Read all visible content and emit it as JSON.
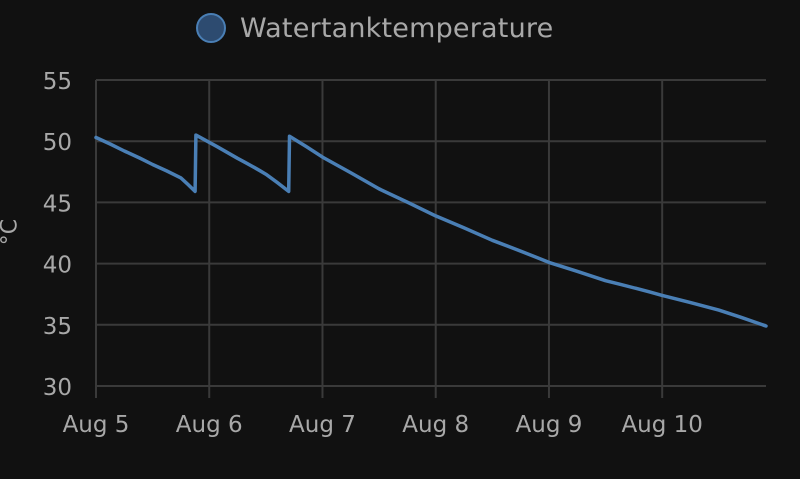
{
  "chart_data": {
    "type": "line",
    "title": "",
    "xlabel": "",
    "ylabel": "°C",
    "ylim": [
      30,
      55
    ],
    "yticks": [
      30,
      35,
      40,
      45,
      50,
      55
    ],
    "xlim": [
      "Aug 5",
      "Aug 10 22:00"
    ],
    "xticks": [
      "Aug 5",
      "Aug 6",
      "Aug 7",
      "Aug 8",
      "Aug 9",
      "Aug 10"
    ],
    "grid": true,
    "legend": "top-center",
    "series": [
      {
        "name": "Watertanktemperature",
        "color": "#4a7fb5",
        "fill": "#2d4b70",
        "points": [
          {
            "t": "Aug 5 00:00",
            "v": 50.3
          },
          {
            "t": "Aug 5 06:00",
            "v": 49.2
          },
          {
            "t": "Aug 5 12:00",
            "v": 48.1
          },
          {
            "t": "Aug 5 18:00",
            "v": 47.0
          },
          {
            "t": "Aug 5 21:00",
            "v": 45.9
          },
          {
            "t": "Aug 5 21:10",
            "v": 50.5
          },
          {
            "t": "Aug 6 06:00",
            "v": 48.6
          },
          {
            "t": "Aug 6 12:00",
            "v": 47.3
          },
          {
            "t": "Aug 6 16:50",
            "v": 45.9
          },
          {
            "t": "Aug 6 17:00",
            "v": 50.4
          },
          {
            "t": "Aug 7 00:00",
            "v": 48.7
          },
          {
            "t": "Aug 7 12:00",
            "v": 46.1
          },
          {
            "t": "Aug 8 00:00",
            "v": 43.9
          },
          {
            "t": "Aug 8 12:00",
            "v": 41.9
          },
          {
            "t": "Aug 9 00:00",
            "v": 40.1
          },
          {
            "t": "Aug 9 12:00",
            "v": 38.6
          },
          {
            "t": "Aug 10 00:00",
            "v": 37.4
          },
          {
            "t": "Aug 10 12:00",
            "v": 36.2
          },
          {
            "t": "Aug 10 22:00",
            "v": 34.9
          }
        ]
      }
    ]
  }
}
